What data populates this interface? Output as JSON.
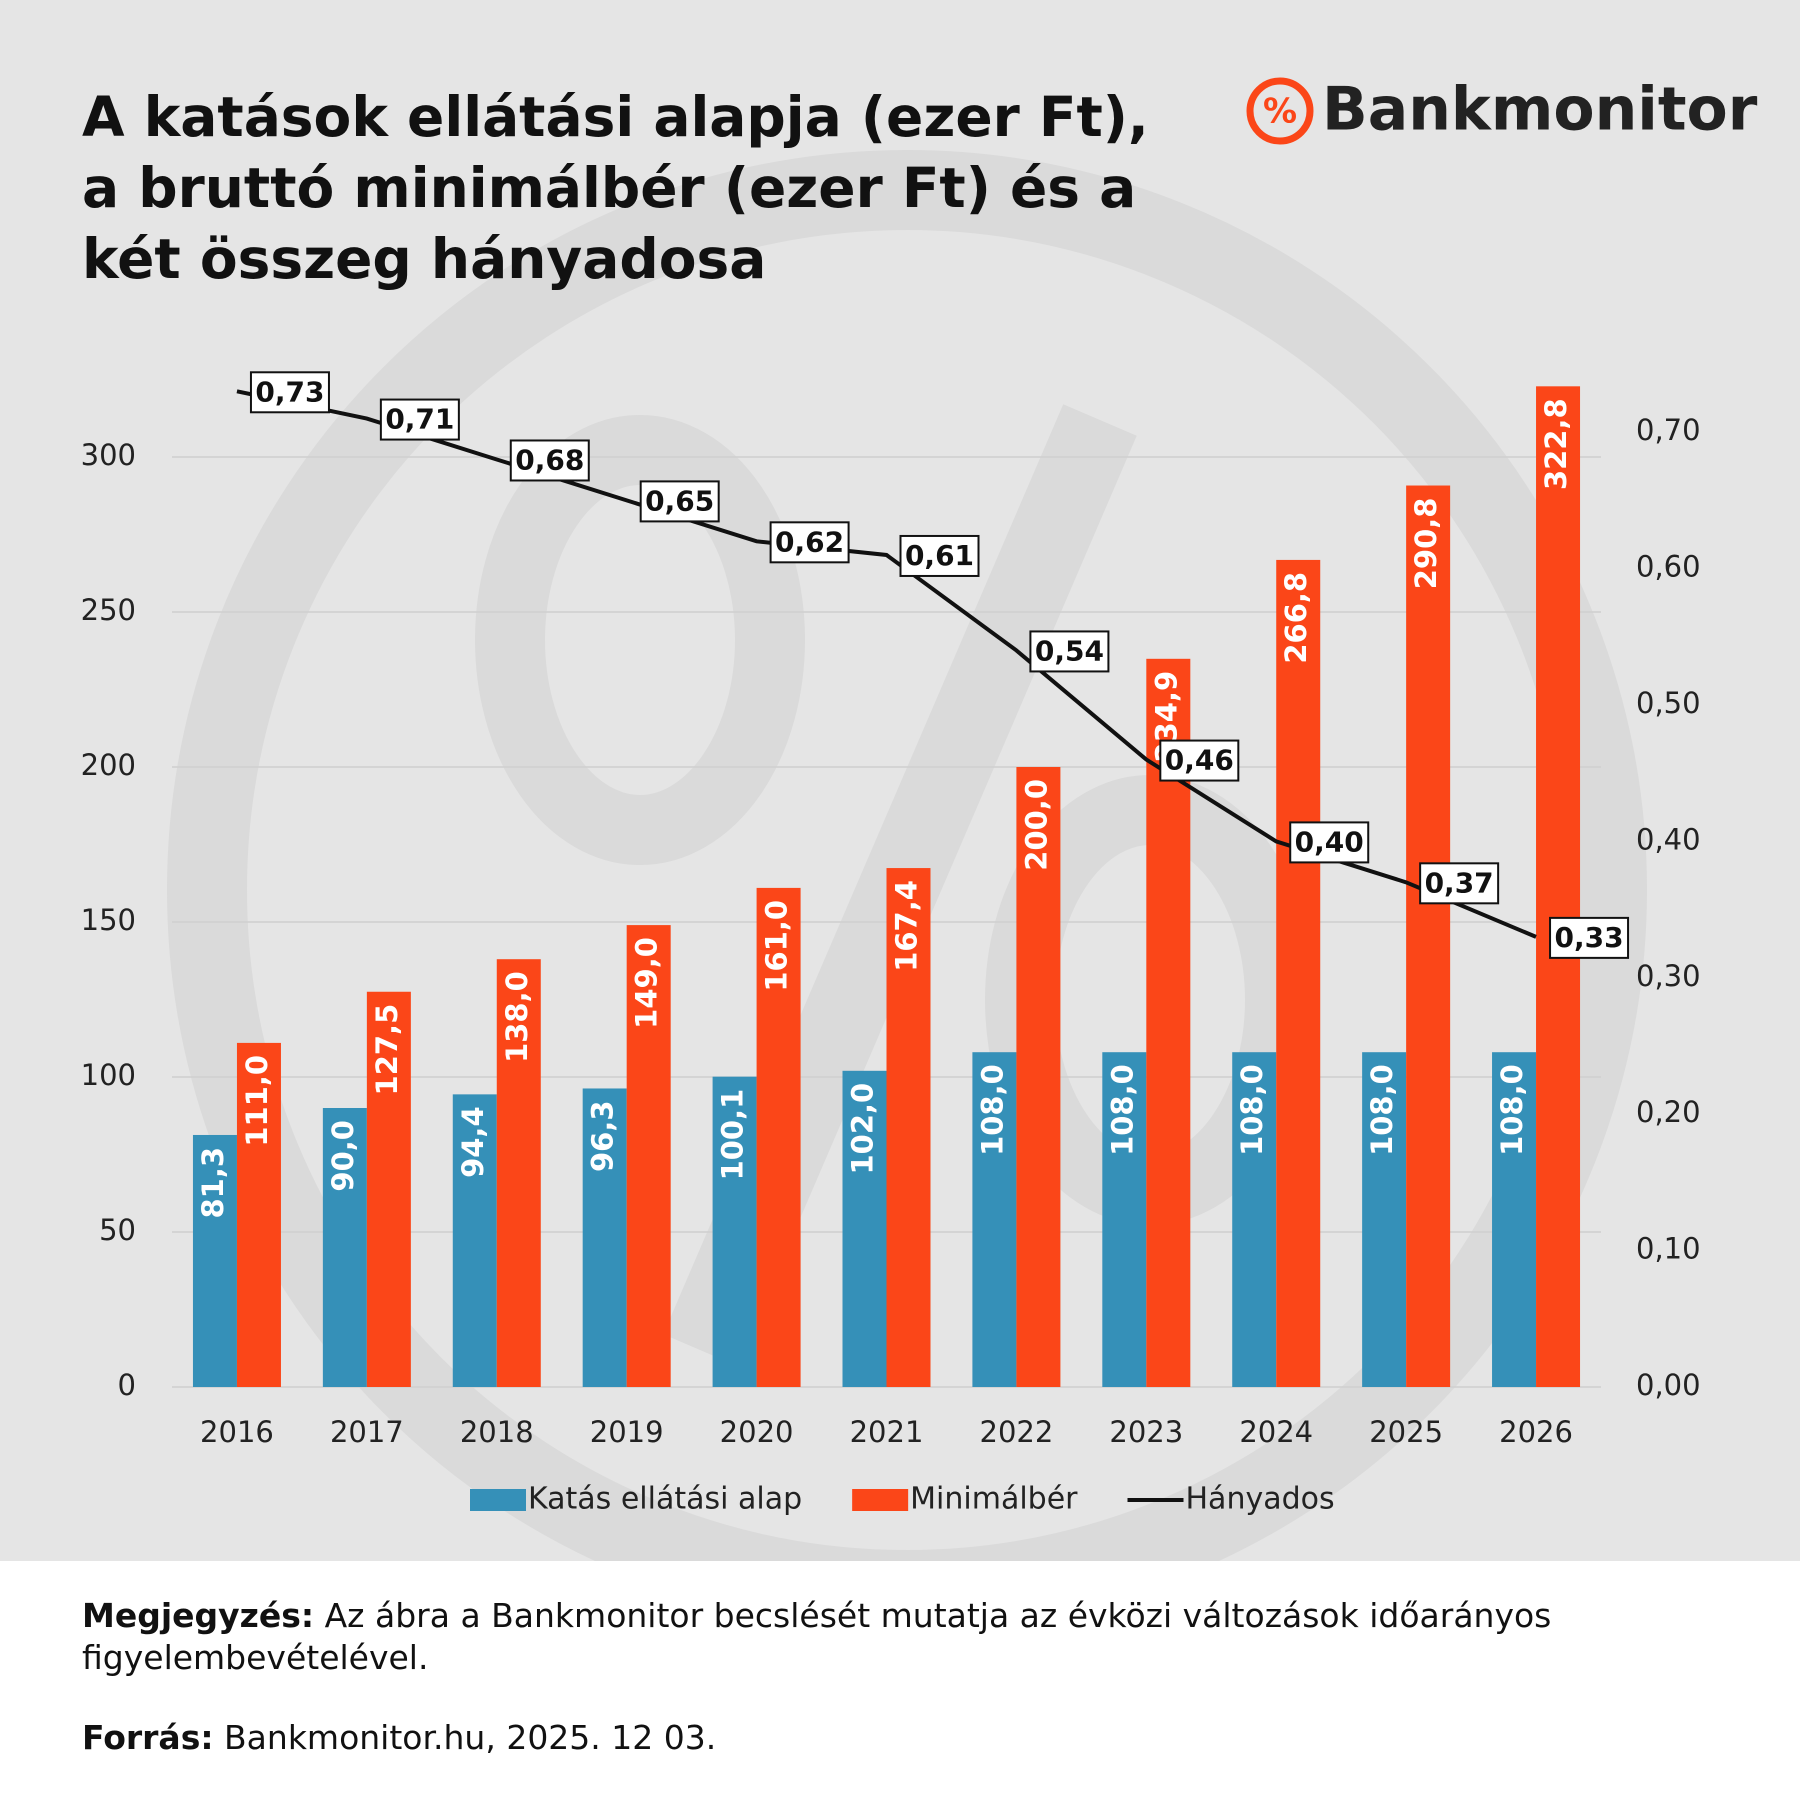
{
  "brand": "Bankmonitor",
  "chart_data": {
    "type": "bar",
    "title": "A katások ellátási alapja (ezer Ft), a bruttó minimálbér (ezer Ft) és a két összeg hányadosa",
    "categories": [
      "2016",
      "2017",
      "2018",
      "2019",
      "2020",
      "2021",
      "2022",
      "2023",
      "2024",
      "2025",
      "2026"
    ],
    "series": [
      {
        "name": "Katás ellátási alap",
        "type": "bar",
        "color": "#3590b8",
        "values": [
          81.3,
          90.0,
          94.4,
          96.3,
          100.1,
          102.0,
          108.0,
          108.0,
          108.0,
          108.0,
          108.0
        ],
        "value_labels": [
          "81,3",
          "90,0",
          "94,4",
          "96,3",
          "100,1",
          "102,0",
          "108,0",
          "108,0",
          "108,0",
          "108,0",
          "108,0"
        ]
      },
      {
        "name": "Minimálbér",
        "type": "bar",
        "color": "#fb4618",
        "values": [
          111.0,
          127.5,
          138.0,
          149.0,
          161.0,
          167.4,
          200.0,
          234.9,
          266.8,
          290.8,
          322.8
        ],
        "value_labels": [
          "111,0",
          "127,5",
          "138,0",
          "149,0",
          "161,0",
          "167,4",
          "200,0",
          "234,9",
          "266,8",
          "290,8",
          "322,8"
        ]
      },
      {
        "name": "Hányados",
        "type": "line",
        "axis": "y2",
        "color": "#111111",
        "values": [
          0.73,
          0.71,
          0.68,
          0.65,
          0.62,
          0.61,
          0.54,
          0.46,
          0.4,
          0.37,
          0.33
        ],
        "value_labels": [
          "0,73",
          "0,71",
          "0,68",
          "0,65",
          "0,62",
          "0,61",
          "0,54",
          "0,46",
          "0,40",
          "0,37",
          "0,33"
        ]
      }
    ],
    "ylim": [
      0,
      330
    ],
    "yticks": [
      0,
      50,
      100,
      150,
      200,
      250,
      300
    ],
    "y2lim": [
      0,
      0.75
    ],
    "y2ticks": [
      {
        "value": 0,
        "label": "0,00"
      },
      {
        "value": 0.1,
        "label": "0,10"
      },
      {
        "value": 0.2,
        "label": "0,20"
      },
      {
        "value": 0.3,
        "label": "0,30"
      },
      {
        "value": 0.4,
        "label": "0,40"
      },
      {
        "value": 0.5,
        "label": "0,50"
      },
      {
        "value": 0.6,
        "label": "0,60"
      },
      {
        "value": 0.7,
        "label": "0,70"
      }
    ],
    "grid": true,
    "legend": "bottom"
  },
  "note": {
    "label": "Megjegyzés:",
    "text": "Az ábra a Bankmonitor becslését mutatja az évközi változások időarányos figyelembevételével."
  },
  "source": {
    "label": "Forrás:",
    "text": "Bankmonitor.hu, 2025. 12 03."
  }
}
